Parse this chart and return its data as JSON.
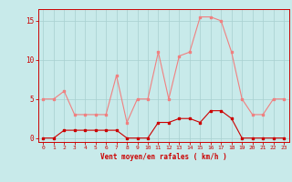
{
  "hours": [
    0,
    1,
    2,
    3,
    4,
    5,
    6,
    7,
    8,
    9,
    10,
    11,
    12,
    13,
    14,
    15,
    16,
    17,
    18,
    19,
    20,
    21,
    22,
    23
  ],
  "rafales": [
    5.0,
    5.0,
    6.0,
    3.0,
    3.0,
    3.0,
    3.0,
    8.0,
    2.0,
    5.0,
    5.0,
    11.0,
    5.0,
    10.5,
    11.0,
    15.5,
    15.5,
    15.0,
    11.0,
    5.0,
    3.0,
    3.0,
    5.0,
    5.0
  ],
  "moyen": [
    0.0,
    0.0,
    1.0,
    1.0,
    1.0,
    1.0,
    1.0,
    1.0,
    0.0,
    0.0,
    0.0,
    2.0,
    2.0,
    2.5,
    2.5,
    2.0,
    3.5,
    3.5,
    2.5,
    0.0,
    0.0,
    0.0,
    0.0,
    0.0
  ],
  "color_rafales": "#f08080",
  "color_moyen": "#cc0000",
  "bg_color": "#c8eaea",
  "grid_color": "#a8d0d0",
  "xlabel": "Vent moyen/en rafales ( km/h )",
  "yticks": [
    0,
    5,
    10,
    15
  ],
  "ylim": [
    -0.5,
    16.5
  ],
  "xlim": [
    -0.5,
    23.5
  ],
  "figsize": [
    3.2,
    2.0
  ],
  "dpi": 100
}
